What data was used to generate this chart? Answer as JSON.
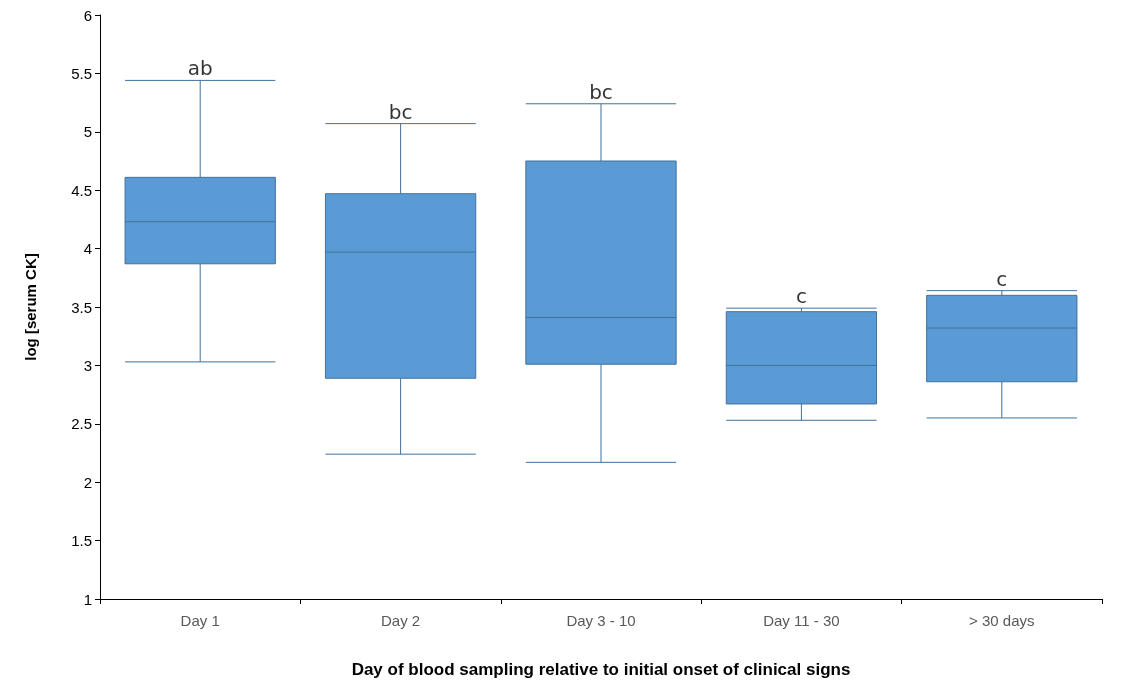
{
  "chart_data": {
    "type": "box",
    "xlabel": "Day of blood sampling relative to initial onset of clinical signs",
    "ylabel": "log [serum CK]",
    "categories": [
      "Day 1",
      "Day 2",
      "Day 3 - 10",
      "Day 11 - 30",
      "> 30 days"
    ],
    "color": "#5b9bd5",
    "boxes": [
      {
        "low": 3.03,
        "q1": 3.87,
        "median": 4.23,
        "q3": 4.61,
        "high": 5.44
      },
      {
        "low": 2.24,
        "q1": 2.89,
        "median": 3.97,
        "q3": 4.47,
        "high": 5.07
      },
      {
        "low": 2.17,
        "q1": 3.01,
        "median": 3.41,
        "q3": 4.75,
        "high": 5.24
      },
      {
        "low": 2.53,
        "q1": 2.67,
        "median": 3.0,
        "q3": 3.46,
        "high": 3.49
      },
      {
        "low": 2.55,
        "q1": 2.86,
        "median": 3.32,
        "q3": 3.6,
        "high": 3.64
      }
    ],
    "ylim": [
      1,
      6
    ],
    "yticks": [
      1,
      1.5,
      2,
      2.5,
      3,
      3.5,
      4,
      4.5,
      5,
      5.5,
      6
    ],
    "grid": false,
    "annotations": [
      {
        "text": "ab",
        "x": "Day 1",
        "y": 5.44
      },
      {
        "text": "bc",
        "x": "Day 2",
        "y": 5.07
      },
      {
        "text": "bc",
        "x": "Day 3 - 10",
        "y": 5.24
      },
      {
        "text": "c",
        "x": "Day 11 - 30",
        "y": 3.49
      },
      {
        "text": "c",
        "x": "> 30 days",
        "y": 3.64
      }
    ]
  }
}
